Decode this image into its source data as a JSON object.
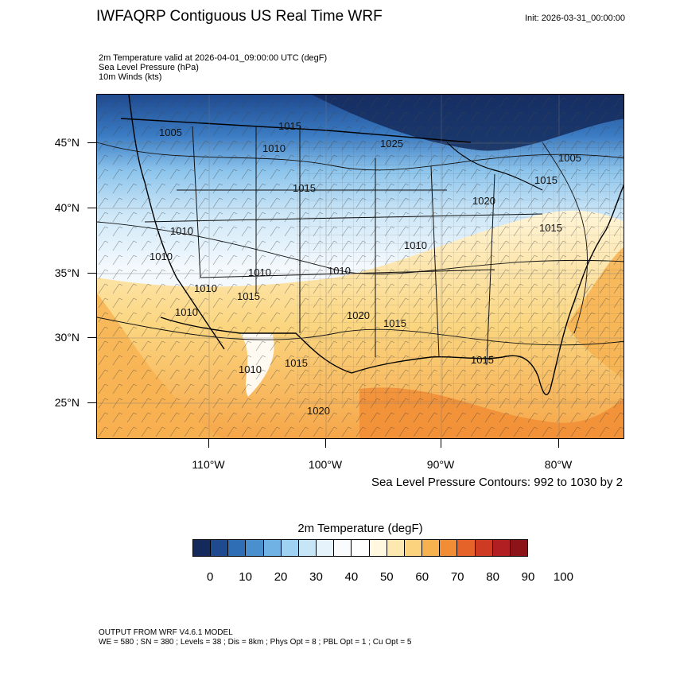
{
  "header": {
    "title": "IWFAQRP Contiguous US Real Time WRF",
    "init": "Init: 2026-03-31_00:00:00",
    "subtitle_lines": [
      "2m Temperature valid at 2026-04-01_09:00:00 UTC   (degF)",
      "Sea Level Pressure   (hPa)",
      "10m Winds   (kts)"
    ]
  },
  "map": {
    "lat_labels": [
      "45°N",
      "40°N",
      "35°N",
      "30°N",
      "25°N"
    ],
    "lon_labels": [
      "110°W",
      "100°W",
      "90°W",
      "80°W"
    ],
    "pressure_labels": [
      "1005",
      "1015",
      "1010",
      "1025",
      "1015",
      "1005",
      "1020",
      "1015",
      "1010",
      "1010",
      "1015",
      "1010",
      "1010",
      "1010",
      "1010",
      "1015",
      "1010",
      "1015",
      "1020",
      "1015",
      "1010",
      "1015",
      "1020"
    ],
    "contour_note": "Sea Level Pressure Contours: 992 to 1030 by 2"
  },
  "colorbar": {
    "title": "2m Temperature  (degF)",
    "colors": [
      "#142a5c",
      "#1f4a8f",
      "#2f6db5",
      "#4a90cf",
      "#6fb2e3",
      "#9fd2f2",
      "#c6e6f8",
      "#e6f3fb",
      "#f9fbfd",
      "#ffffff",
      "#fff8de",
      "#fde9b0",
      "#fbd27e",
      "#f7b250",
      "#f18d35",
      "#e56228",
      "#cf3a25",
      "#b21f22",
      "#8c1419"
    ],
    "tick_labels": [
      "0",
      "10",
      "20",
      "30",
      "40",
      "50",
      "60",
      "70",
      "80",
      "90",
      "100"
    ]
  },
  "footer": {
    "line1": "OUTPUT FROM WRF V4.6.1 MODEL",
    "line2": "WE = 580 ; SN = 380 ; Levels = 38 ; Dis = 8km ; Phys Opt = 8 ; PBL Opt = 1 ; Cu Opt = 5"
  }
}
